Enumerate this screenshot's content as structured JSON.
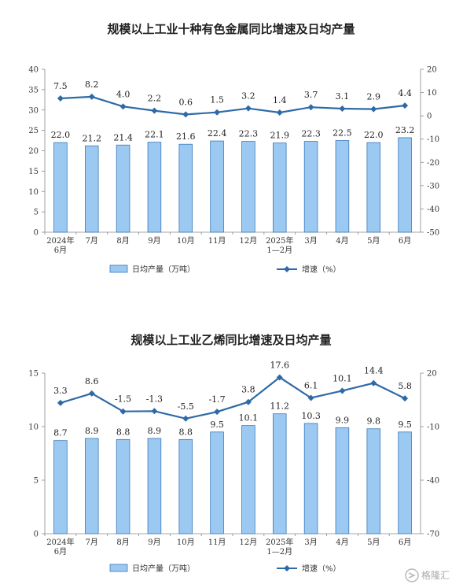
{
  "chart_data": [
    {
      "type": "bar",
      "title": "规模以上工业十种有色金属同比增速及日均产量",
      "categories": [
        "2024年\n6月",
        "7月",
        "8月",
        "9月",
        "10月",
        "11月",
        "12月",
        "2025年\n1—2月",
        "3月",
        "4月",
        "5月",
        "6月"
      ],
      "series": [
        {
          "name": "日均产量（万吨）",
          "type": "bar",
          "axis": "left",
          "values": [
            22.0,
            21.2,
            21.4,
            22.1,
            21.6,
            22.4,
            22.3,
            21.9,
            22.3,
            22.5,
            22.0,
            23.2
          ]
        },
        {
          "name": "增速（%）",
          "type": "line",
          "axis": "right",
          "values": [
            7.5,
            8.2,
            4.0,
            2.2,
            0.6,
            1.5,
            3.2,
            1.4,
            3.7,
            3.1,
            2.9,
            4.4
          ]
        }
      ],
      "bar_labels": [
        "22.0",
        "21.2",
        "21.4",
        "22.1",
        "21.6",
        "22.4",
        "22.3",
        "21.9",
        "22.3",
        "22.5",
        "22.0",
        "23.2"
      ],
      "line_labels": [
        "7.5",
        "8.2",
        "4.0",
        "2.2",
        "0.6",
        "1.5",
        "3.2",
        "1.4",
        "3.7",
        "3.1",
        "2.9",
        "4.4"
      ],
      "ylim_left": [
        0,
        40
      ],
      "yticks_left": [
        0,
        5,
        10,
        15,
        20,
        25,
        30,
        35,
        40
      ],
      "ylim_right": [
        -50,
        20
      ],
      "yticks_right": [
        -50,
        -40,
        -30,
        -20,
        -10,
        0,
        10,
        20
      ],
      "legend": "bottom",
      "grid": false
    },
    {
      "type": "bar",
      "title": "规模以上工业乙烯同比增速及日均产量",
      "categories": [
        "2024年\n6月",
        "7月",
        "8月",
        "9月",
        "10月",
        "11月",
        "12月",
        "2025年\n1—2月",
        "3月",
        "4月",
        "5月",
        "6月"
      ],
      "series": [
        {
          "name": "日均产量（万吨）",
          "type": "bar",
          "axis": "left",
          "values": [
            8.7,
            8.9,
            8.8,
            8.9,
            8.8,
            9.5,
            10.1,
            11.2,
            10.3,
            9.9,
            9.8,
            9.5
          ]
        },
        {
          "name": "增速（%）",
          "type": "line",
          "axis": "right",
          "values": [
            3.3,
            8.6,
            -1.5,
            -1.3,
            -5.5,
            -1.7,
            3.8,
            17.6,
            6.1,
            10.1,
            14.4,
            5.8
          ]
        }
      ],
      "bar_labels": [
        "8.7",
        "8.9",
        "8.8",
        "8.9",
        "8.8",
        "9.5",
        "10.1",
        "11.2",
        "10.3",
        "9.9",
        "9.8",
        "9.5"
      ],
      "line_labels": [
        "3.3",
        "8.6",
        "-1.5",
        "-1.3",
        "-5.5",
        "-1.7",
        "3.8",
        "17.6",
        "6.1",
        "10.1",
        "14.4",
        "5.8"
      ],
      "ylim_left": [
        0,
        15
      ],
      "yticks_left": [
        0,
        5,
        10,
        15
      ],
      "ylim_right": [
        -70,
        20
      ],
      "yticks_right": [
        -70,
        -40,
        -10,
        20
      ],
      "legend": "bottom",
      "grid": false
    }
  ],
  "watermark": {
    "text": "格隆汇",
    "icon": "gelonghui-logo-icon"
  },
  "colors": {
    "bar_fill": "#9cc9f2",
    "bar_stroke": "#3a78b8",
    "line": "#2e6aa8"
  }
}
